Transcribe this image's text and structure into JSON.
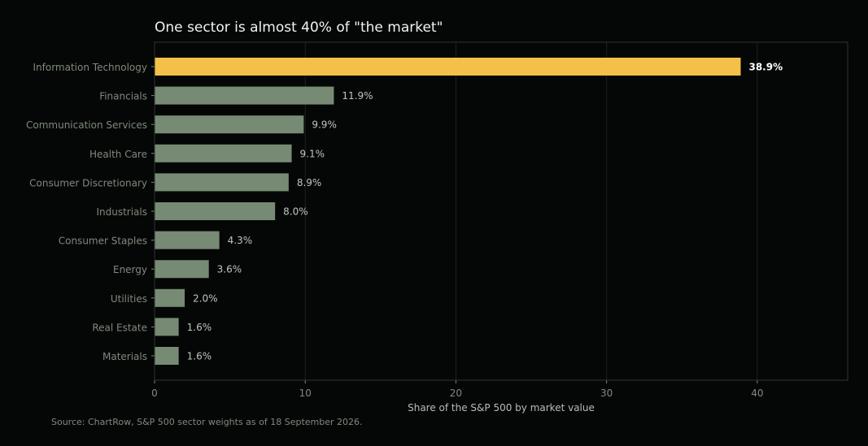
{
  "chart_data": {
    "type": "bar",
    "orientation": "horizontal",
    "title": "One sector is almost 40% of \"the market\"",
    "xlabel": "Share of the S&P 500 by market value",
    "ylabel": "",
    "xlim": [
      0,
      46
    ],
    "xticks": [
      0,
      10,
      20,
      30,
      40
    ],
    "grid": true,
    "categories": [
      "Information Technology",
      "Financials",
      "Communication Services",
      "Health Care",
      "Consumer Discretionary",
      "Industrials",
      "Consumer Staples",
      "Energy",
      "Utilities",
      "Real Estate",
      "Materials"
    ],
    "values": [
      38.9,
      11.9,
      9.9,
      9.1,
      8.9,
      8.0,
      4.3,
      3.6,
      2.0,
      1.6,
      1.6
    ],
    "value_labels": [
      "38.9%",
      "11.9%",
      "9.9%",
      "9.1%",
      "8.9%",
      "8.0%",
      "4.3%",
      "3.6%",
      "2.0%",
      "1.6%",
      "1.6%"
    ],
    "highlight_index": 0,
    "colors": {
      "highlight": "#f5c04a",
      "default": "#778a74",
      "background": "#050706",
      "frame": "#2e342e",
      "grid": "#1c221c"
    }
  },
  "source": "Source: ChartRow, S&P 500 sector weights as of 18 September 2026."
}
